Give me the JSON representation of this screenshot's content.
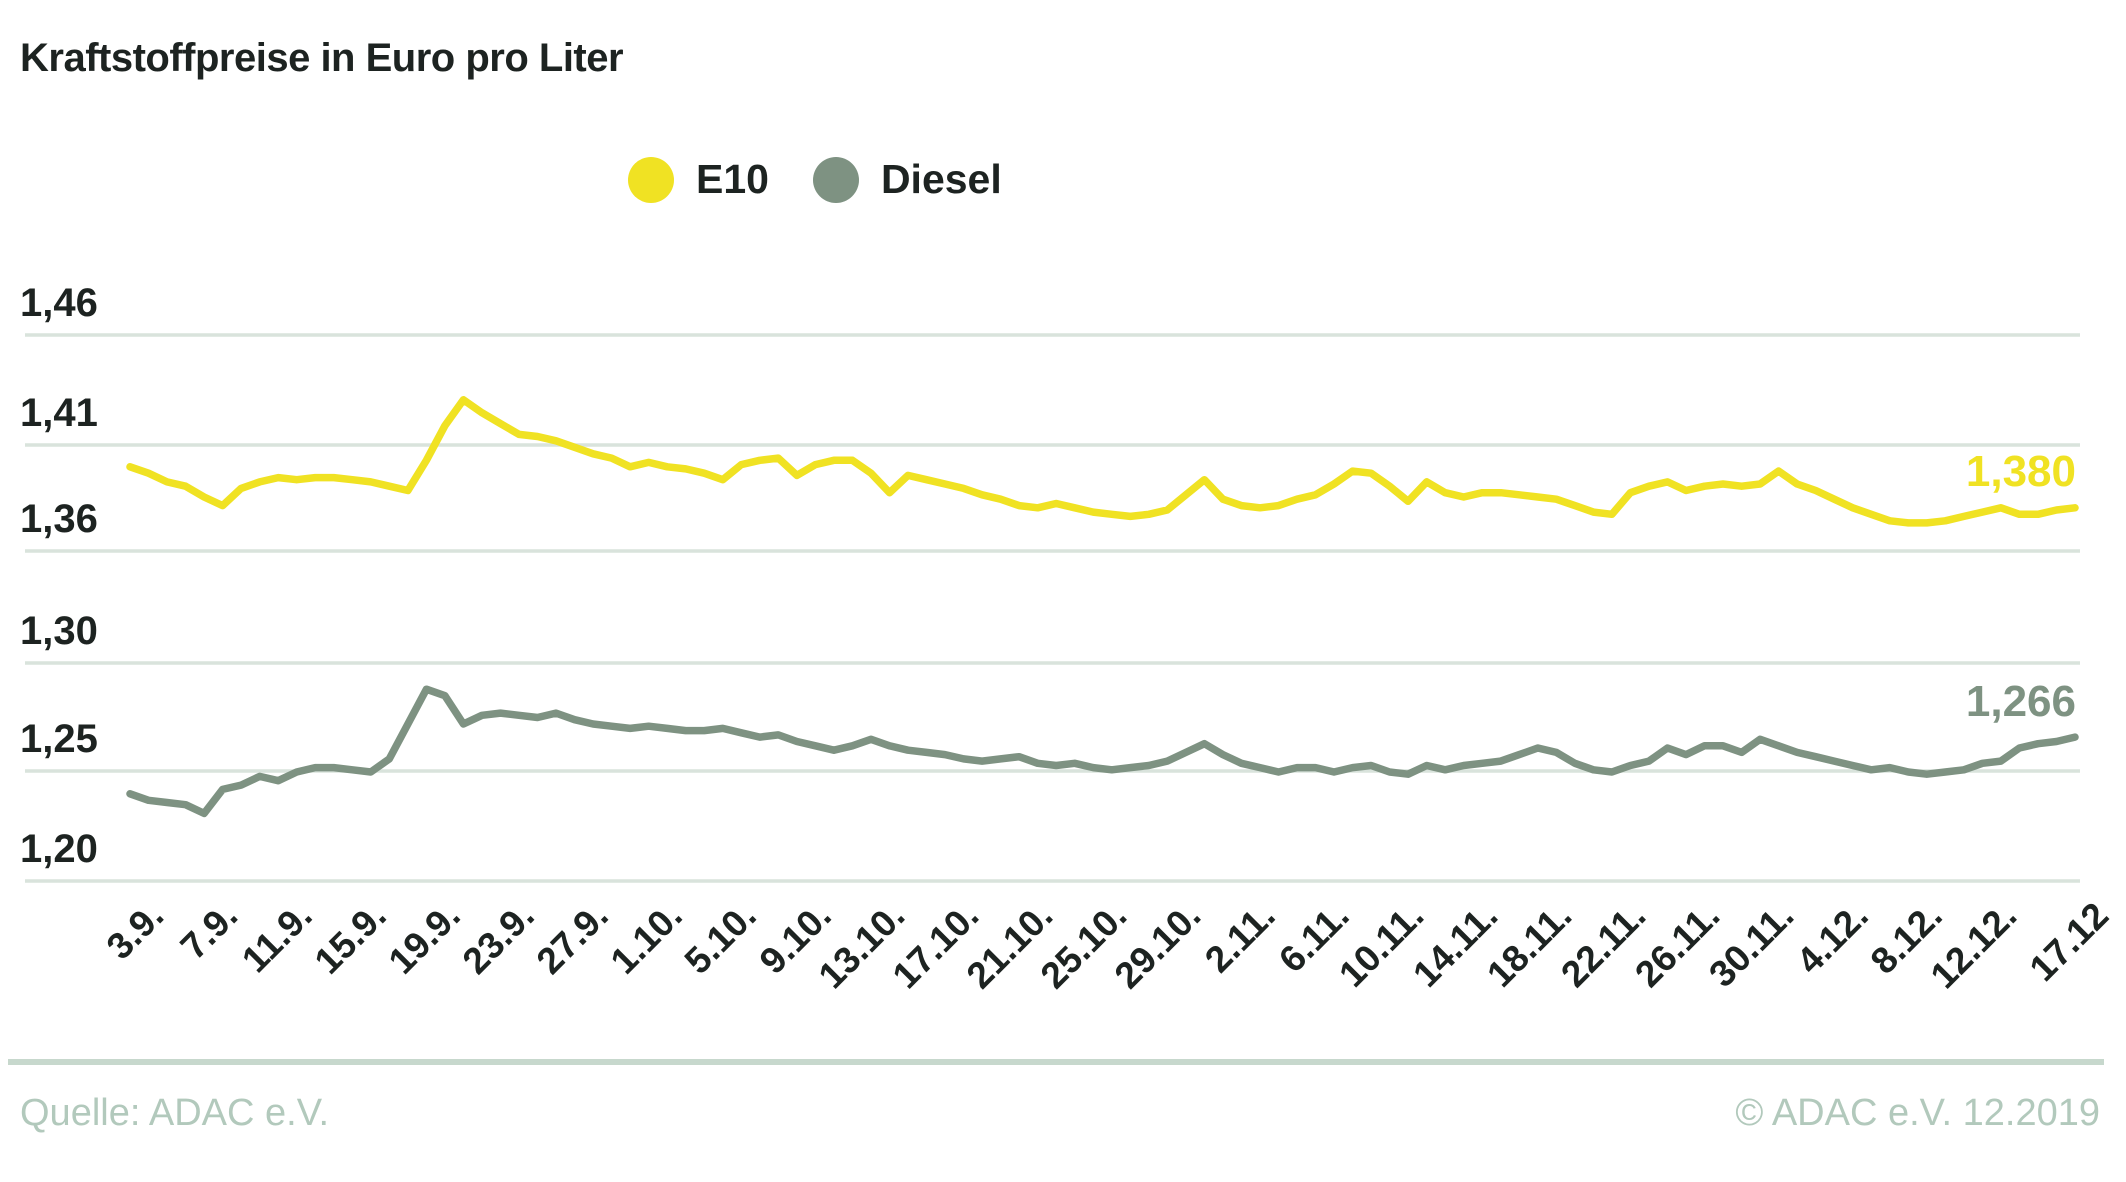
{
  "chart_data": {
    "type": "line",
    "title": "Kraftstoffpreise in Euro pro Liter",
    "x_unit": "daily dates from 3.9. to 17.12",
    "n_points": 106,
    "x_tick_labels": [
      {
        "label": "3.9.",
        "i": 0
      },
      {
        "label": "7.9.",
        "i": 4
      },
      {
        "label": "11.9.",
        "i": 8
      },
      {
        "label": "15.9.",
        "i": 12
      },
      {
        "label": "19.9.",
        "i": 16
      },
      {
        "label": "23.9.",
        "i": 20
      },
      {
        "label": "27.9.",
        "i": 24
      },
      {
        "label": "1.10.",
        "i": 28
      },
      {
        "label": "5.10.",
        "i": 32
      },
      {
        "label": "9.10.",
        "i": 36
      },
      {
        "label": "13.10.",
        "i": 40
      },
      {
        "label": "17.10.",
        "i": 44
      },
      {
        "label": "21.10.",
        "i": 48
      },
      {
        "label": "25.10.",
        "i": 52
      },
      {
        "label": "29.10.",
        "i": 56
      },
      {
        "label": "2.11.",
        "i": 60
      },
      {
        "label": "6.11.",
        "i": 64
      },
      {
        "label": "10.11.",
        "i": 68
      },
      {
        "label": "14.11.",
        "i": 72
      },
      {
        "label": "18.11.",
        "i": 76
      },
      {
        "label": "22.11.",
        "i": 80
      },
      {
        "label": "26.11.",
        "i": 84
      },
      {
        "label": "30.11.",
        "i": 88
      },
      {
        "label": "4.12.",
        "i": 92
      },
      {
        "label": "8.12.",
        "i": 96
      },
      {
        "label": "12.12.",
        "i": 100
      },
      {
        "label": "17.12",
        "i": 105
      }
    ],
    "y_tick_labels": [
      "1,46",
      "1,41",
      "1,36",
      "1,30",
      "1,25",
      "1,20"
    ],
    "y_axis_note": "Broken axis with evenly spaced gridlines: upper band 1,36-1,46 (E10), lower band 1,20-1,30 (Diesel)",
    "grid": true,
    "legend_position": "top-center",
    "series": [
      {
        "name": "E10",
        "color": "#f0e223",
        "axis": "top",
        "end_label": "1,380",
        "values": [
          1.399,
          1.396,
          1.392,
          1.39,
          1.385,
          1.381,
          1.389,
          1.392,
          1.394,
          1.393,
          1.394,
          1.394,
          1.393,
          1.392,
          1.39,
          1.388,
          1.402,
          1.418,
          1.43,
          1.424,
          1.419,
          1.414,
          1.413,
          1.411,
          1.408,
          1.405,
          1.403,
          1.399,
          1.401,
          1.399,
          1.398,
          1.396,
          1.393,
          1.4,
          1.402,
          1.403,
          1.395,
          1.4,
          1.402,
          1.402,
          1.396,
          1.387,
          1.395,
          1.393,
          1.391,
          1.389,
          1.386,
          1.384,
          1.381,
          1.38,
          1.382,
          1.38,
          1.378,
          1.377,
          1.376,
          1.377,
          1.379,
          1.386,
          1.393,
          1.384,
          1.381,
          1.38,
          1.381,
          1.384,
          1.386,
          1.391,
          1.397,
          1.396,
          1.39,
          1.383,
          1.392,
          1.387,
          1.385,
          1.387,
          1.387,
          1.386,
          1.385,
          1.384,
          1.381,
          1.378,
          1.377,
          1.387,
          1.39,
          1.392,
          1.388,
          1.39,
          1.391,
          1.39,
          1.391,
          1.397,
          1.391,
          1.388,
          1.384,
          1.38,
          1.377,
          1.374,
          1.373,
          1.373,
          1.374,
          1.376,
          1.378,
          1.38,
          1.377,
          1.377,
          1.379,
          1.38
        ]
      },
      {
        "name": "Diesel",
        "color": "#7e9282",
        "axis": "bottom",
        "end_label": "1,266",
        "values": [
          1.24,
          1.237,
          1.236,
          1.235,
          1.231,
          1.242,
          1.244,
          1.248,
          1.246,
          1.25,
          1.252,
          1.252,
          1.251,
          1.25,
          1.256,
          1.272,
          1.288,
          1.285,
          1.272,
          1.276,
          1.277,
          1.276,
          1.275,
          1.277,
          1.274,
          1.272,
          1.271,
          1.27,
          1.271,
          1.27,
          1.269,
          1.269,
          1.27,
          1.268,
          1.266,
          1.267,
          1.264,
          1.262,
          1.26,
          1.262,
          1.265,
          1.262,
          1.26,
          1.259,
          1.258,
          1.256,
          1.255,
          1.256,
          1.257,
          1.254,
          1.253,
          1.254,
          1.252,
          1.251,
          1.252,
          1.253,
          1.255,
          1.259,
          1.263,
          1.258,
          1.254,
          1.252,
          1.25,
          1.252,
          1.252,
          1.25,
          1.252,
          1.253,
          1.25,
          1.249,
          1.253,
          1.251,
          1.253,
          1.254,
          1.255,
          1.258,
          1.261,
          1.259,
          1.254,
          1.251,
          1.25,
          1.253,
          1.255,
          1.261,
          1.258,
          1.262,
          1.262,
          1.259,
          1.265,
          1.262,
          1.259,
          1.257,
          1.255,
          1.253,
          1.251,
          1.252,
          1.25,
          1.249,
          1.25,
          1.251,
          1.254,
          1.255,
          1.261,
          1.263,
          1.264,
          1.266
        ]
      }
    ]
  },
  "footer": {
    "source": "Quelle: ADAC e.V.",
    "copyright": "© ADAC e.V. 12.2019"
  },
  "colors": {
    "e10": "#f0e223",
    "diesel": "#7e9282",
    "grid": "#d9e3dc",
    "text": "#1d2321",
    "footer_text": "#b2c9bc",
    "divider": "#c7d8cd",
    "background": "#ffffff"
  }
}
